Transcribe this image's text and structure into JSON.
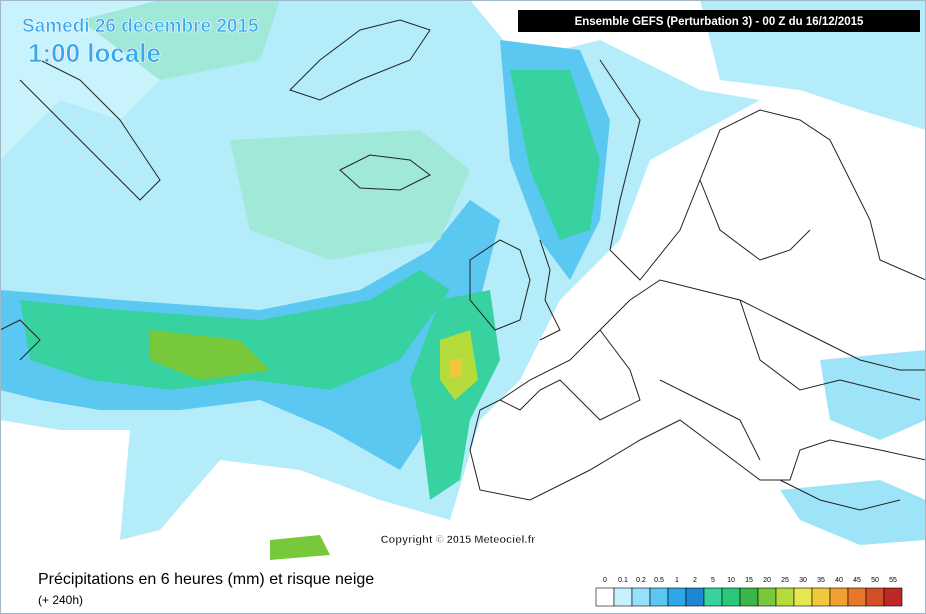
{
  "header": {
    "date": "Samedi 26 décembre 2015",
    "time": "1:00 locale",
    "model": "Ensemble GEFS  (Perturbation 3)  -  00 Z du 16/12/2015"
  },
  "copyright": "Copyright © 2015 Meteociel.fr",
  "footer": {
    "title": "Précipitations en 6 heures (mm) et risque neige",
    "lead": "(+ 240h)"
  },
  "legend": {
    "thresholds": [
      "0",
      "0.1",
      "0.2",
      "0.5",
      "1",
      "2",
      "5",
      "10",
      "15",
      "20",
      "25",
      "30",
      "35",
      "40",
      "45",
      "50",
      "55"
    ],
    "colors": [
      "#ffffff",
      "#c8f0ff",
      "#96e0fa",
      "#5ac8f0",
      "#2ca8e6",
      "#1e88d2",
      "#38d2a0",
      "#28c878",
      "#3cb44c",
      "#78c83c",
      "#b4dc3c",
      "#e6e650",
      "#f0c83c",
      "#f0a032",
      "#e67828",
      "#d25028",
      "#be2828"
    ]
  }
}
